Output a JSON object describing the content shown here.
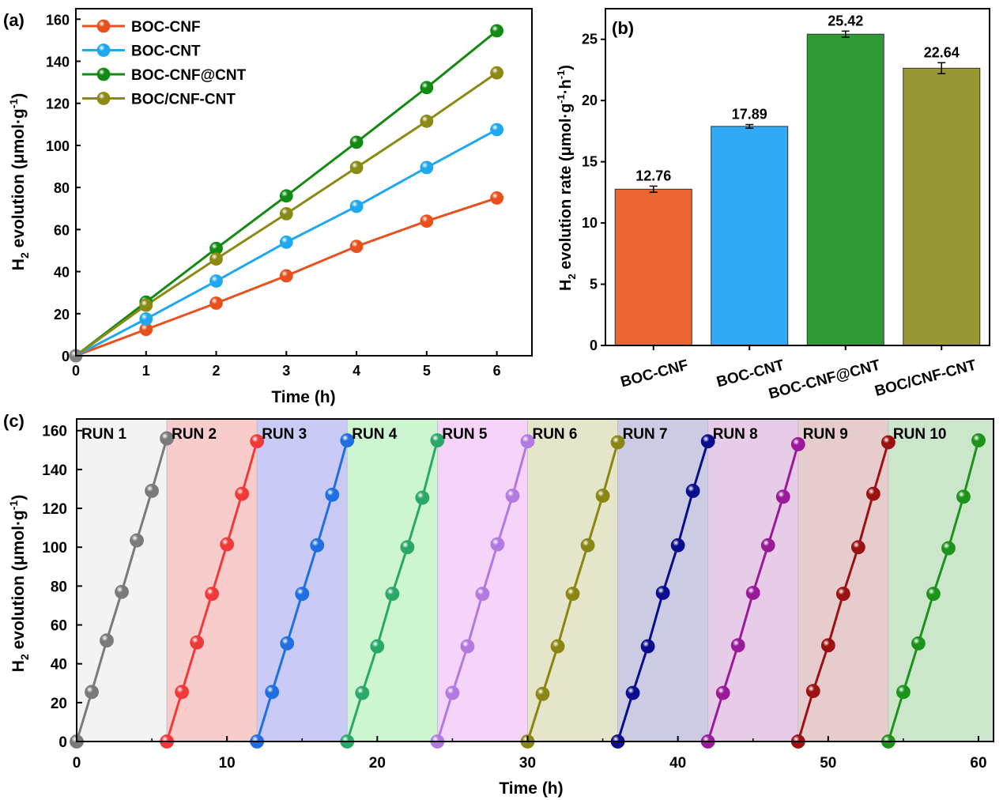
{
  "panels": {
    "a": {
      "label": "(a)"
    },
    "b": {
      "label": "(b)"
    },
    "c": {
      "label": "(c)"
    }
  },
  "chart_data": [
    {
      "type": "line",
      "panel": "(a)",
      "xlabel": "Time (h)",
      "ylabel_main": "H",
      "ylabel_sub": "2",
      "ylabel_rest": " evolution (μmol·g",
      "ylabel_sup": "-1",
      "ylabel_end": ")",
      "xlim": [
        0,
        6.5
      ],
      "ylim": [
        0,
        165
      ],
      "xticks": [
        0,
        1,
        2,
        3,
        4,
        5,
        6
      ],
      "yticks": [
        0,
        20,
        40,
        60,
        80,
        100,
        120,
        140,
        160
      ],
      "x": [
        0,
        1,
        2,
        3,
        4,
        5,
        6
      ],
      "legend_position": "top-left",
      "series": [
        {
          "name": "BOC-CNF",
          "color": "#e8501e",
          "values": [
            0,
            12.5,
            25,
            38,
            52,
            64,
            75
          ]
        },
        {
          "name": "BOC-CNT",
          "color": "#1fa8f0",
          "values": [
            0,
            17.5,
            35.5,
            54,
            71,
            89.5,
            107.5
          ]
        },
        {
          "name": "BOC-CNF@CNT",
          "color": "#138a13",
          "values": [
            0,
            25.5,
            51,
            76,
            101.5,
            127.5,
            154.5
          ]
        },
        {
          "name": "BOC/CNF-CNT",
          "color": "#8a8a14",
          "values": [
            0,
            24,
            46,
            67.5,
            89.5,
            111.5,
            134.5
          ]
        }
      ]
    },
    {
      "type": "bar",
      "panel": "(b)",
      "ylabel_main": "H",
      "ylabel_sub": "2",
      "ylabel_rest": " evolution rate (μmol·g",
      "ylabel_sup1": "-1",
      "ylabel_mid": "·h",
      "ylabel_sup2": "-1",
      "ylabel_end": ")",
      "ylim": [
        0,
        27.5
      ],
      "yticks": [
        0,
        5,
        10,
        15,
        20,
        25
      ],
      "categories": [
        "BOC-CNF",
        "BOC-CNT",
        "BOC-CNF@CNT",
        "BOC/CNF-CNT"
      ],
      "values": [
        12.76,
        17.89,
        25.42,
        22.64
      ],
      "value_labels": [
        "12.76",
        "17.89",
        "25.42",
        "22.64"
      ],
      "errors": [
        0.25,
        0.15,
        0.25,
        0.45
      ],
      "colors": [
        "#ec6634",
        "#31aaf6",
        "#2f9a36",
        "#979733"
      ]
    },
    {
      "type": "line",
      "panel": "(c)",
      "xlabel": "Time (h)",
      "ylabel_main": "H",
      "ylabel_sub": "2",
      "ylabel_rest": " evolution (μmol·g",
      "ylabel_sup": "-1",
      "ylabel_end": ")",
      "xlim": [
        0,
        61
      ],
      "ylim": [
        0,
        166
      ],
      "xticks": [
        0,
        10,
        20,
        30,
        40,
        50,
        60
      ],
      "yticks": [
        0,
        20,
        40,
        60,
        80,
        100,
        120,
        140,
        160
      ],
      "runs": [
        {
          "name": "RUN 1",
          "bg": "#f3f3f3",
          "color": "#7a7a7a",
          "values": [
            0,
            25.5,
            52,
            77,
            103.5,
            129,
            156
          ]
        },
        {
          "name": "RUN 2",
          "bg": "#f9cccc",
          "color": "#f03a3a",
          "values": [
            0,
            25.5,
            51,
            76,
            101.5,
            127.5,
            154.5
          ]
        },
        {
          "name": "RUN 3",
          "bg": "#c9caf6",
          "color": "#1f6fe0",
          "values": [
            0,
            25.5,
            50.5,
            76,
            101,
            127,
            155
          ]
        },
        {
          "name": "RUN 4",
          "bg": "#cdf6d0",
          "color": "#2aa86a",
          "values": [
            0,
            25,
            49,
            76,
            100,
            125.5,
            155
          ]
        },
        {
          "name": "RUN 5",
          "bg": "#f6d3f9",
          "color": "#b07ae0",
          "values": [
            0,
            25,
            49,
            76,
            101.5,
            126.5,
            154.5
          ]
        },
        {
          "name": "RUN 6",
          "bg": "#e5e5c9",
          "color": "#8a8614",
          "values": [
            0,
            24.5,
            49,
            76,
            101,
            126.5,
            154
          ]
        },
        {
          "name": "RUN 7",
          "bg": "#cbcbe4",
          "color": "#0c0c8e",
          "values": [
            0,
            25,
            49,
            76.5,
            101,
            129,
            154.5
          ]
        },
        {
          "name": "RUN 8",
          "bg": "#e6cce6",
          "color": "#9a1a9a",
          "values": [
            0,
            25,
            49.5,
            76.5,
            101,
            126,
            153
          ]
        },
        {
          "name": "RUN 9",
          "bg": "#e6cccc",
          "color": "#9a1212",
          "values": [
            0,
            26,
            49.5,
            76,
            100,
            127.5,
            154
          ]
        },
        {
          "name": "RUN 10",
          "bg": "#cce6cc",
          "color": "#1c941c",
          "values": [
            0,
            25.5,
            50.5,
            76,
            99.5,
            126,
            155
          ]
        }
      ]
    }
  ]
}
